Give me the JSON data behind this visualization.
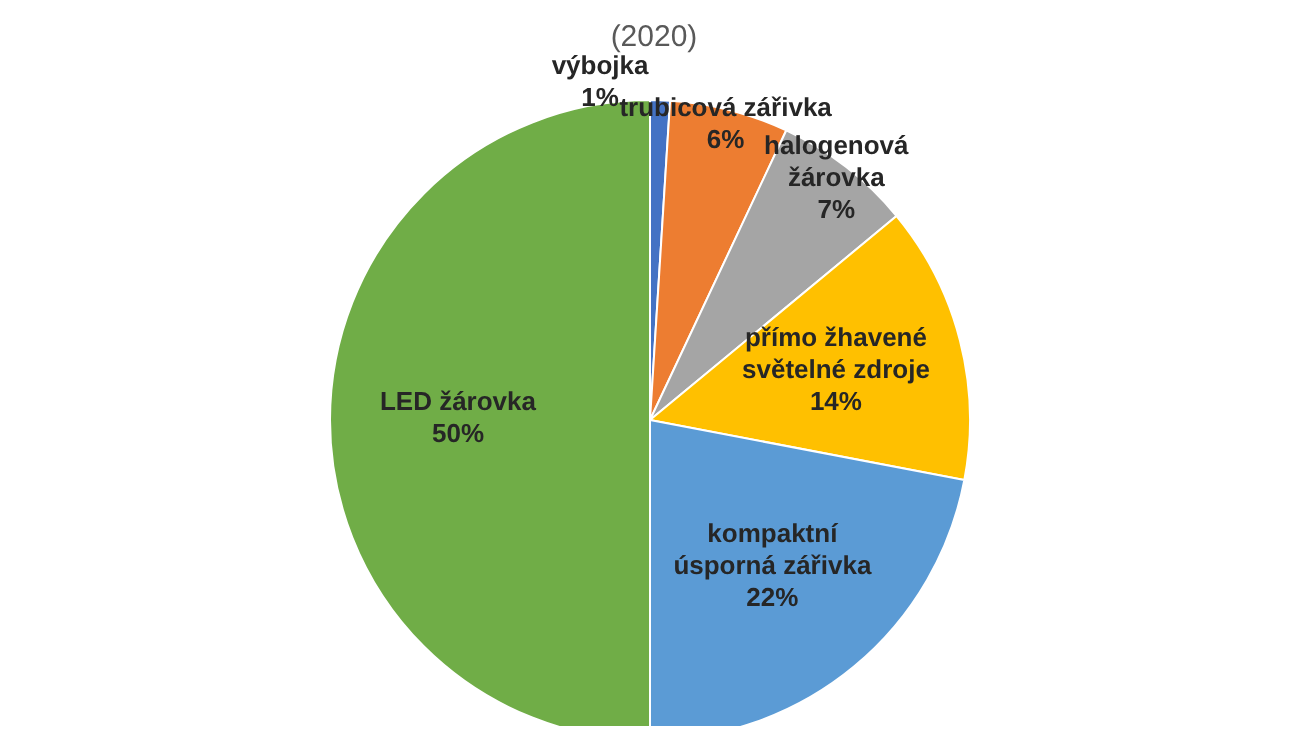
{
  "chart_data": {
    "type": "pie",
    "annotations": [
      "(2020)"
    ],
    "categories": [
      "výbojka",
      "trubicová zářivka",
      "halogenová žárovka",
      "přímo žhavené světelné zdroje",
      "kompaktní úsporná zářivka",
      "LED žárovka"
    ],
    "values": [
      1,
      6,
      7,
      14,
      22,
      50
    ],
    "value_labels": [
      "1%",
      "6%",
      "7%",
      "14%",
      "22%",
      "50%"
    ],
    "colors": [
      "#4472c4",
      "#ed7d31",
      "#a5a5a5",
      "#ffc000",
      "#5b9bd5",
      "#70ad47"
    ],
    "legend": false
  }
}
